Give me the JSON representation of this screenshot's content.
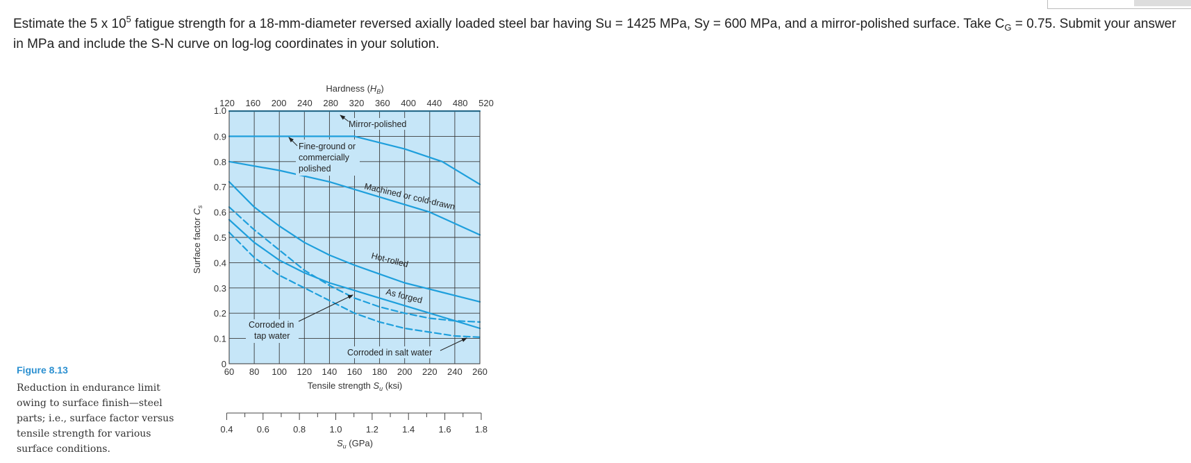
{
  "question": {
    "part1": "Estimate the 5 x 10",
    "exp": "5",
    "part2": " fatigue strength for a 18-mm-diameter reversed axially loaded steel bar having Su = 1425 MPa, Sy = 600 MPa, and a mirror-polished surface. Take C",
    "sub": "G",
    "part3": " = 0.75. Submit your answer in MPa and include the S-N curve on log-log coordinates in your solution."
  },
  "figure": {
    "label": "Figure 8.13",
    "caption": "Reduction in endurance limit owing to surface finish—steel parts; i.e., surface factor versus tensile strength for various surface conditions."
  },
  "colors": {
    "plot_bg": "#c6e6f8",
    "curve": "#1e9fdc",
    "grid": "#3a3a3a"
  },
  "chart_data": {
    "type": "line",
    "title": "",
    "top_axis": {
      "label_prefix": "Hardness (",
      "label_var": "H",
      "label_sub": "B",
      "label_suffix": ")",
      "ticks": [
        "120",
        "160",
        "200",
        "240",
        "280",
        "320",
        "360",
        "400",
        "440",
        "480",
        "520"
      ]
    },
    "xlabel_prefix": "Tensile strength ",
    "xlabel_var": "S",
    "xlabel_sub": "u",
    "xlabel_suffix": " (ksi)",
    "xlim": [
      60,
      260
    ],
    "xticks": [
      "60",
      "80",
      "100",
      "120",
      "140",
      "160",
      "180",
      "200",
      "220",
      "240",
      "260"
    ],
    "ylabel_prefix": "Surface factor ",
    "ylabel_var": "C",
    "ylabel_sub": "s",
    "ylim": [
      0,
      1.0
    ],
    "yticks": [
      "0",
      "0.1",
      "0.2",
      "0.3",
      "0.4",
      "0.5",
      "0.6",
      "0.7",
      "0.8",
      "0.9",
      "1.0"
    ],
    "grid": true,
    "secondary_axis": {
      "label_var": "S",
      "label_sub": "u",
      "label_suffix": " (GPa)",
      "ticks": [
        "0.4",
        "0.6",
        "0.8",
        "1.0",
        "1.2",
        "1.4",
        "1.6",
        "1.8"
      ],
      "tick_values": [
        0.4,
        0.6,
        0.8,
        1.0,
        1.2,
        1.4,
        1.6,
        1.8
      ]
    },
    "series": [
      {
        "name": "Mirror-polished",
        "style": "solid",
        "x": [
          60,
          260
        ],
        "y": [
          1.0,
          1.0
        ]
      },
      {
        "name": "Fine-ground or commercially polished",
        "style": "solid",
        "x": [
          60,
          160,
          200,
          230,
          260
        ],
        "y": [
          0.9,
          0.9,
          0.85,
          0.8,
          0.71
        ]
      },
      {
        "name": "Machined or cold-drawn",
        "style": "solid",
        "x": [
          60,
          100,
          140,
          180,
          220,
          260
        ],
        "y": [
          0.8,
          0.765,
          0.72,
          0.66,
          0.6,
          0.51
        ]
      },
      {
        "name": "Hot-rolled",
        "style": "solid",
        "x": [
          60,
          80,
          100,
          120,
          140,
          160,
          180,
          200,
          220,
          240,
          260
        ],
        "y": [
          0.72,
          0.62,
          0.545,
          0.48,
          0.43,
          0.39,
          0.355,
          0.32,
          0.295,
          0.27,
          0.245
        ]
      },
      {
        "name": "As forged",
        "style": "solid",
        "x": [
          60,
          80,
          100,
          120,
          140,
          160,
          180,
          200,
          220,
          240,
          260
        ],
        "y": [
          0.57,
          0.48,
          0.41,
          0.36,
          0.32,
          0.29,
          0.26,
          0.23,
          0.2,
          0.17,
          0.14
        ]
      },
      {
        "name": "Corroded in tap water",
        "style": "dashed",
        "x": [
          60,
          80,
          100,
          120,
          140,
          160,
          180,
          200,
          220,
          240,
          260
        ],
        "y": [
          0.62,
          0.53,
          0.45,
          0.37,
          0.31,
          0.26,
          0.225,
          0.2,
          0.18,
          0.17,
          0.165
        ]
      },
      {
        "name": "Corroded in salt water",
        "style": "dashed",
        "x": [
          60,
          80,
          100,
          120,
          140,
          160,
          180,
          200,
          220,
          240,
          260
        ],
        "y": [
          0.52,
          0.42,
          0.35,
          0.3,
          0.25,
          0.2,
          0.165,
          0.14,
          0.125,
          0.11,
          0.105
        ]
      }
    ],
    "annotations": {
      "mirror": "Mirror-polished",
      "fine_1": "Fine-ground or",
      "fine_2": "commercially",
      "fine_3": "polished",
      "machined": "Machined or cold-drawn",
      "hot": "Hot-rolled",
      "forged": "As forged",
      "tap_1": "Corroded in",
      "tap_2": "tap water",
      "salt": "Corroded in salt water"
    }
  }
}
